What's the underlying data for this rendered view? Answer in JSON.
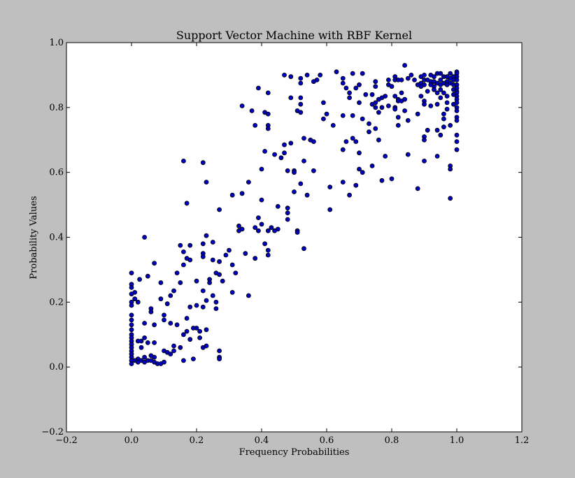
{
  "chart_data": {
    "type": "scatter",
    "title": "Support Vector Machine with RBF Kernel",
    "xlabel": "Frequency Probabilities",
    "ylabel": "Probability Values",
    "xlim": [
      -0.2,
      1.2
    ],
    "ylim": [
      -0.2,
      1.0
    ],
    "xticks": [
      -0.2,
      0.0,
      0.2,
      0.4,
      0.6,
      0.8,
      1.0,
      1.2
    ],
    "xtick_labels": [
      "−0.2",
      "0.0",
      "0.2",
      "0.4",
      "0.6",
      "0.8",
      "1.0",
      "1.2"
    ],
    "yticks": [
      -0.2,
      0.0,
      0.2,
      0.4,
      0.6,
      0.8,
      1.0
    ],
    "ytick_labels": [
      "−0.2",
      "0.0",
      "0.2",
      "0.4",
      "0.6",
      "0.8",
      "1.0"
    ],
    "grid": false,
    "colors": {
      "marker_fill": "#0000bf",
      "marker_edge": "#000000",
      "figure_bg": "#bfbfbf",
      "axes_bg": "#ffffff"
    },
    "points": [
      [
        0.0,
        0.29
      ],
      [
        0.0,
        0.255
      ],
      [
        0.0,
        0.245
      ],
      [
        0.0,
        0.225
      ],
      [
        0.0,
        0.2
      ],
      [
        0.0,
        0.19
      ],
      [
        0.0,
        0.16
      ],
      [
        0.0,
        0.145
      ],
      [
        0.0,
        0.13
      ],
      [
        0.0,
        0.115
      ],
      [
        0.0,
        0.1
      ],
      [
        0.0,
        0.09
      ],
      [
        0.0,
        0.08
      ],
      [
        0.0,
        0.07
      ],
      [
        0.0,
        0.06
      ],
      [
        0.0,
        0.05
      ],
      [
        0.0,
        0.04
      ],
      [
        0.0,
        0.03
      ],
      [
        0.0,
        0.02
      ],
      [
        0.0,
        0.01
      ],
      [
        0.01,
        0.23
      ],
      [
        0.01,
        0.21
      ],
      [
        0.01,
        0.02
      ],
      [
        0.02,
        0.2
      ],
      [
        0.02,
        0.08
      ],
      [
        0.02,
        0.025
      ],
      [
        0.02,
        0.015
      ],
      [
        0.025,
        0.27
      ],
      [
        0.03,
        0.06
      ],
      [
        0.03,
        0.02
      ],
      [
        0.03,
        0.08
      ],
      [
        0.04,
        0.4
      ],
      [
        0.04,
        0.135
      ],
      [
        0.04,
        0.09
      ],
      [
        0.04,
        0.03
      ],
      [
        0.04,
        0.015
      ],
      [
        0.05,
        0.28
      ],
      [
        0.05,
        0.075
      ],
      [
        0.05,
        0.02
      ],
      [
        0.06,
        0.18
      ],
      [
        0.06,
        0.17
      ],
      [
        0.06,
        0.035
      ],
      [
        0.06,
        0.02
      ],
      [
        0.07,
        0.32
      ],
      [
        0.07,
        0.13
      ],
      [
        0.07,
        0.075
      ],
      [
        0.07,
        0.03
      ],
      [
        0.07,
        0.015
      ],
      [
        0.08,
        0.01
      ],
      [
        0.09,
        0.26
      ],
      [
        0.09,
        0.21
      ],
      [
        0.09,
        0.01
      ],
      [
        0.1,
        0.16
      ],
      [
        0.1,
        0.145
      ],
      [
        0.1,
        0.05
      ],
      [
        0.1,
        0.015
      ],
      [
        0.11,
        0.195
      ],
      [
        0.11,
        0.045
      ],
      [
        0.12,
        0.22
      ],
      [
        0.12,
        0.135
      ],
      [
        0.12,
        0.04
      ],
      [
        0.13,
        0.235
      ],
      [
        0.13,
        0.065
      ],
      [
        0.13,
        0.05
      ],
      [
        0.14,
        0.29
      ],
      [
        0.14,
        0.13
      ],
      [
        0.15,
        0.375
      ],
      [
        0.15,
        0.26
      ],
      [
        0.15,
        0.06
      ],
      [
        0.16,
        0.635
      ],
      [
        0.16,
        0.355
      ],
      [
        0.16,
        0.315
      ],
      [
        0.16,
        0.1
      ],
      [
        0.16,
        0.02
      ],
      [
        0.17,
        0.505
      ],
      [
        0.17,
        0.335
      ],
      [
        0.17,
        0.15
      ],
      [
        0.17,
        0.11
      ],
      [
        0.18,
        0.375
      ],
      [
        0.18,
        0.33
      ],
      [
        0.18,
        0.185
      ],
      [
        0.18,
        0.085
      ],
      [
        0.19,
        0.12
      ],
      [
        0.19,
        0.025
      ],
      [
        0.2,
        0.265
      ],
      [
        0.2,
        0.19
      ],
      [
        0.2,
        0.12
      ],
      [
        0.21,
        0.11
      ],
      [
        0.21,
        0.09
      ],
      [
        0.22,
        0.63
      ],
      [
        0.22,
        0.38
      ],
      [
        0.22,
        0.35
      ],
      [
        0.22,
        0.34
      ],
      [
        0.22,
        0.235
      ],
      [
        0.22,
        0.185
      ],
      [
        0.22,
        0.06
      ],
      [
        0.23,
        0.57
      ],
      [
        0.23,
        0.405
      ],
      [
        0.23,
        0.205
      ],
      [
        0.23,
        0.115
      ],
      [
        0.23,
        0.065
      ],
      [
        0.24,
        0.27
      ],
      [
        0.24,
        0.26
      ],
      [
        0.25,
        0.385
      ],
      [
        0.25,
        0.33
      ],
      [
        0.25,
        0.22
      ],
      [
        0.26,
        0.29
      ],
      [
        0.26,
        0.2
      ],
      [
        0.26,
        0.18
      ],
      [
        0.27,
        0.485
      ],
      [
        0.27,
        0.325
      ],
      [
        0.27,
        0.285
      ],
      [
        0.27,
        0.05
      ],
      [
        0.27,
        0.03
      ],
      [
        0.27,
        0.025
      ],
      [
        0.28,
        0.265
      ],
      [
        0.29,
        0.345
      ],
      [
        0.3,
        0.36
      ],
      [
        0.31,
        0.53
      ],
      [
        0.31,
        0.315
      ],
      [
        0.31,
        0.23
      ],
      [
        0.32,
        0.29
      ],
      [
        0.33,
        0.435
      ],
      [
        0.33,
        0.42
      ],
      [
        0.34,
        0.805
      ],
      [
        0.34,
        0.535
      ],
      [
        0.34,
        0.425
      ],
      [
        0.35,
        0.35
      ],
      [
        0.36,
        0.57
      ],
      [
        0.36,
        0.22
      ],
      [
        0.37,
        0.79
      ],
      [
        0.38,
        0.745
      ],
      [
        0.38,
        0.43
      ],
      [
        0.38,
        0.335
      ],
      [
        0.39,
        0.86
      ],
      [
        0.39,
        0.46
      ],
      [
        0.39,
        0.42
      ],
      [
        0.4,
        0.61
      ],
      [
        0.4,
        0.515
      ],
      [
        0.4,
        0.44
      ],
      [
        0.41,
        0.785
      ],
      [
        0.41,
        0.665
      ],
      [
        0.41,
        0.38
      ],
      [
        0.42,
        0.845
      ],
      [
        0.42,
        0.78
      ],
      [
        0.42,
        0.745
      ],
      [
        0.42,
        0.735
      ],
      [
        0.42,
        0.42
      ],
      [
        0.42,
        0.36
      ],
      [
        0.42,
        0.345
      ],
      [
        0.43,
        0.43
      ],
      [
        0.44,
        0.655
      ],
      [
        0.44,
        0.42
      ],
      [
        0.45,
        0.495
      ],
      [
        0.45,
        0.425
      ],
      [
        0.46,
        0.645
      ],
      [
        0.47,
        0.9
      ],
      [
        0.47,
        0.685
      ],
      [
        0.47,
        0.66
      ],
      [
        0.48,
        0.605
      ],
      [
        0.48,
        0.49
      ],
      [
        0.48,
        0.475
      ],
      [
        0.48,
        0.455
      ],
      [
        0.49,
        0.895
      ],
      [
        0.49,
        0.83
      ],
      [
        0.49,
        0.69
      ],
      [
        0.5,
        0.605
      ],
      [
        0.5,
        0.6
      ],
      [
        0.5,
        0.54
      ],
      [
        0.51,
        0.79
      ],
      [
        0.51,
        0.42
      ],
      [
        0.51,
        0.415
      ],
      [
        0.52,
        0.89
      ],
      [
        0.52,
        0.875
      ],
      [
        0.52,
        0.83
      ],
      [
        0.52,
        0.81
      ],
      [
        0.52,
        0.785
      ],
      [
        0.52,
        0.565
      ],
      [
        0.53,
        0.705
      ],
      [
        0.53,
        0.635
      ],
      [
        0.53,
        0.365
      ],
      [
        0.54,
        0.9
      ],
      [
        0.54,
        0.53
      ],
      [
        0.55,
        0.7
      ],
      [
        0.56,
        0.88
      ],
      [
        0.56,
        0.695
      ],
      [
        0.56,
        0.605
      ],
      [
        0.57,
        0.885
      ],
      [
        0.58,
        0.9
      ],
      [
        0.59,
        0.815
      ],
      [
        0.59,
        0.765
      ],
      [
        0.6,
        0.78
      ],
      [
        0.61,
        0.555
      ],
      [
        0.61,
        0.485
      ],
      [
        0.62,
        0.745
      ],
      [
        0.63,
        0.91
      ],
      [
        0.65,
        0.89
      ],
      [
        0.65,
        0.875
      ],
      [
        0.65,
        0.775
      ],
      [
        0.65,
        0.67
      ],
      [
        0.65,
        0.57
      ],
      [
        0.66,
        0.86
      ],
      [
        0.66,
        0.695
      ],
      [
        0.67,
        0.845
      ],
      [
        0.67,
        0.83
      ],
      [
        0.67,
        0.53
      ],
      [
        0.68,
        0.905
      ],
      [
        0.68,
        0.775
      ],
      [
        0.68,
        0.705
      ],
      [
        0.69,
        0.86
      ],
      [
        0.69,
        0.695
      ],
      [
        0.69,
        0.56
      ],
      [
        0.7,
        0.87
      ],
      [
        0.7,
        0.815
      ],
      [
        0.7,
        0.66
      ],
      [
        0.7,
        0.61
      ],
      [
        0.71,
        0.905
      ],
      [
        0.71,
        0.765
      ],
      [
        0.71,
        0.6
      ],
      [
        0.72,
        0.84
      ],
      [
        0.73,
        0.75
      ],
      [
        0.73,
        0.725
      ],
      [
        0.74,
        0.84
      ],
      [
        0.74,
        0.81
      ],
      [
        0.74,
        0.62
      ],
      [
        0.75,
        0.88
      ],
      [
        0.75,
        0.865
      ],
      [
        0.75,
        0.815
      ],
      [
        0.75,
        0.8
      ],
      [
        0.75,
        0.735
      ],
      [
        0.76,
        0.825
      ],
      [
        0.76,
        0.785
      ],
      [
        0.76,
        0.7
      ],
      [
        0.77,
        0.83
      ],
      [
        0.77,
        0.8
      ],
      [
        0.77,
        0.575
      ],
      [
        0.78,
        0.835
      ],
      [
        0.78,
        0.65
      ],
      [
        0.79,
        0.885
      ],
      [
        0.79,
        0.87
      ],
      [
        0.79,
        0.805
      ],
      [
        0.8,
        0.58
      ],
      [
        0.8,
        0.865
      ],
      [
        0.81,
        0.895
      ],
      [
        0.81,
        0.885
      ],
      [
        0.81,
        0.835
      ],
      [
        0.81,
        0.8
      ],
      [
        0.81,
        0.795
      ],
      [
        0.82,
        0.885
      ],
      [
        0.82,
        0.825
      ],
      [
        0.82,
        0.82
      ],
      [
        0.82,
        0.77
      ],
      [
        0.82,
        0.745
      ],
      [
        0.83,
        0.885
      ],
      [
        0.83,
        0.845
      ],
      [
        0.83,
        0.82
      ],
      [
        0.84,
        0.93
      ],
      [
        0.84,
        0.825
      ],
      [
        0.84,
        0.79
      ],
      [
        0.85,
        0.89
      ],
      [
        0.85,
        0.76
      ],
      [
        0.85,
        0.655
      ],
      [
        0.86,
        0.9
      ],
      [
        0.87,
        0.885
      ],
      [
        0.88,
        0.87
      ],
      [
        0.88,
        0.78
      ],
      [
        0.88,
        0.55
      ],
      [
        0.89,
        0.895
      ],
      [
        0.89,
        0.875
      ],
      [
        0.89,
        0.835
      ],
      [
        0.89,
        0.865
      ],
      [
        0.9,
        0.9
      ],
      [
        0.9,
        0.885
      ],
      [
        0.9,
        0.87
      ],
      [
        0.9,
        0.82
      ],
      [
        0.9,
        0.81
      ],
      [
        0.9,
        0.71
      ],
      [
        0.9,
        0.7
      ],
      [
        0.9,
        0.635
      ],
      [
        0.91,
        0.885
      ],
      [
        0.91,
        0.85
      ],
      [
        0.91,
        0.73
      ],
      [
        0.92,
        0.9
      ],
      [
        0.92,
        0.88
      ],
      [
        0.92,
        0.87
      ],
      [
        0.92,
        0.805
      ],
      [
        0.93,
        0.895
      ],
      [
        0.93,
        0.88
      ],
      [
        0.93,
        0.865
      ],
      [
        0.93,
        0.855
      ],
      [
        0.94,
        0.905
      ],
      [
        0.94,
        0.875
      ],
      [
        0.94,
        0.845
      ],
      [
        0.94,
        0.81
      ],
      [
        0.94,
        0.73
      ],
      [
        0.94,
        0.65
      ],
      [
        0.95,
        0.905
      ],
      [
        0.95,
        0.885
      ],
      [
        0.95,
        0.87
      ],
      [
        0.95,
        0.855
      ],
      [
        0.95,
        0.83
      ],
      [
        0.95,
        0.715
      ],
      [
        0.96,
        0.895
      ],
      [
        0.96,
        0.875
      ],
      [
        0.96,
        0.845
      ],
      [
        0.96,
        0.78
      ],
      [
        0.96,
        0.765
      ],
      [
        0.96,
        0.74
      ],
      [
        0.97,
        0.895
      ],
      [
        0.97,
        0.88
      ],
      [
        0.97,
        0.87
      ],
      [
        0.97,
        0.835
      ],
      [
        0.97,
        0.815
      ],
      [
        0.97,
        0.795
      ],
      [
        0.98,
        0.905
      ],
      [
        0.98,
        0.89
      ],
      [
        0.98,
        0.875
      ],
      [
        0.98,
        0.745
      ],
      [
        0.98,
        0.62
      ],
      [
        0.98,
        0.61
      ],
      [
        0.98,
        0.52
      ],
      [
        0.99,
        0.895
      ],
      [
        0.99,
        0.885
      ],
      [
        0.99,
        0.87
      ],
      [
        0.99,
        0.855
      ],
      [
        0.99,
        0.84
      ],
      [
        0.99,
        0.81
      ],
      [
        1.0,
        0.91
      ],
      [
        1.0,
        0.905
      ],
      [
        1.0,
        0.895
      ],
      [
        1.0,
        0.885
      ],
      [
        1.0,
        0.87
      ],
      [
        1.0,
        0.86
      ],
      [
        1.0,
        0.85
      ],
      [
        1.0,
        0.845
      ],
      [
        1.0,
        0.835
      ],
      [
        1.0,
        0.825
      ],
      [
        1.0,
        0.815
      ],
      [
        1.0,
        0.8
      ],
      [
        1.0,
        0.79
      ],
      [
        1.0,
        0.77
      ],
      [
        1.0,
        0.76
      ],
      [
        1.0,
        0.715
      ],
      [
        1.0,
        0.695
      ],
      [
        1.0,
        0.67
      ]
    ]
  }
}
